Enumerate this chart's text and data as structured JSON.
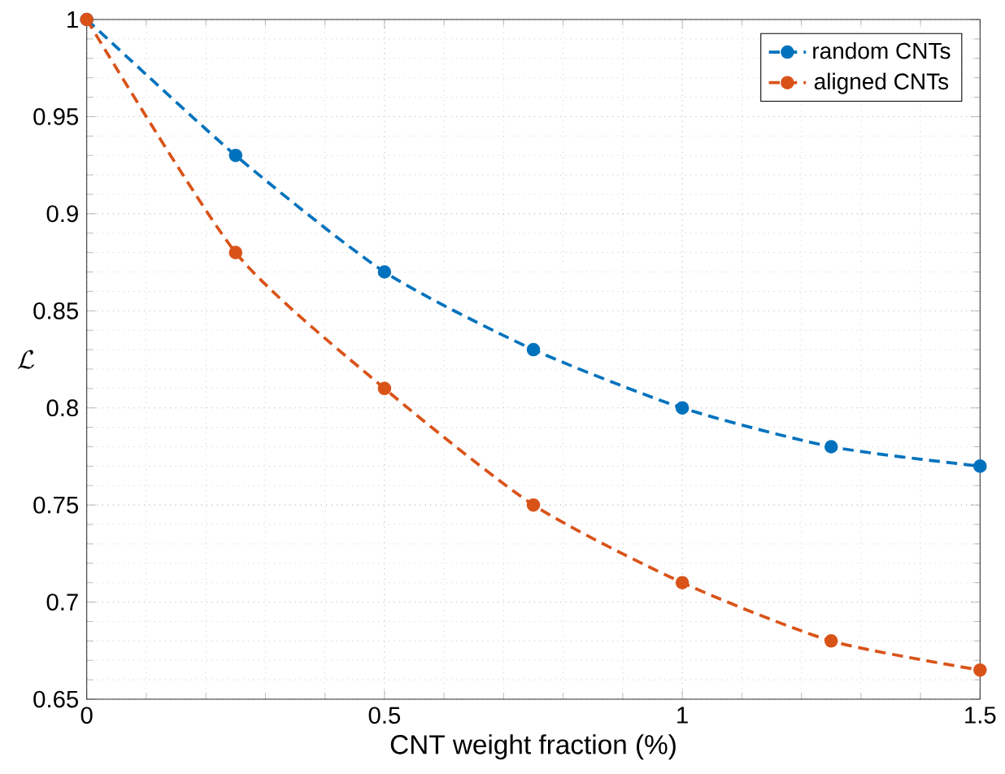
{
  "chart_data": {
    "type": "line",
    "xlabel": "CNT weight fraction (%)",
    "ylabel": "\\mathcal{L}",
    "x": [
      0,
      0.25,
      0.5,
      0.75,
      1,
      1.25,
      1.5
    ],
    "series": [
      {
        "name": "random CNTs",
        "color": "#0072bd",
        "values": [
          1,
          0.93,
          0.87,
          0.83,
          0.8,
          0.78,
          0.77
        ]
      },
      {
        "name": "aligned CNTs",
        "color": "#d95319",
        "values": [
          1,
          0.88,
          0.81,
          0.75,
          0.71,
          0.68,
          0.665
        ]
      }
    ],
    "xlim": [
      0,
      1.5
    ],
    "ylim": [
      0.65,
      1
    ],
    "xticks": [
      0,
      0.5,
      1,
      1.5
    ],
    "yticks": [
      0.65,
      0.7,
      0.75,
      0.8,
      0.85,
      0.9,
      0.95,
      1
    ],
    "grid": true,
    "legend": "top right",
    "marker": "circle",
    "line_style": "dashed"
  }
}
